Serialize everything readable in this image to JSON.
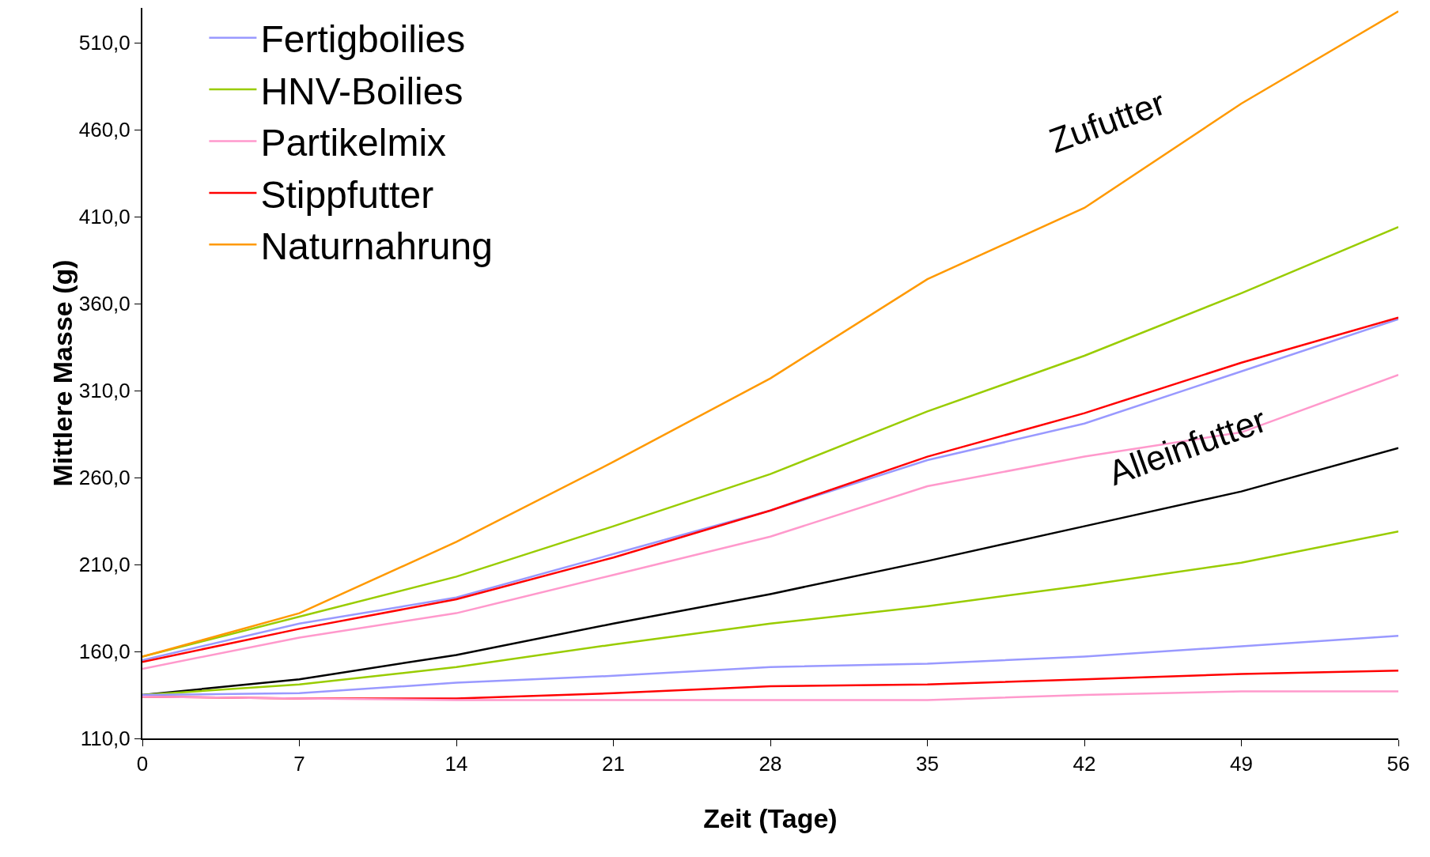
{
  "chart_data": {
    "type": "line",
    "xlabel": "Zeit (Tage)",
    "ylabel": "Mittlere Masse (g)",
    "x": [
      0,
      7,
      14,
      21,
      28,
      35,
      42,
      49,
      56
    ],
    "xlim": [
      0,
      56
    ],
    "xticks": [
      0,
      7,
      14,
      21,
      28,
      35,
      42,
      49,
      56
    ],
    "ylim": [
      110,
      530
    ],
    "yticks": [
      {
        "value": 110,
        "label": "110,0"
      },
      {
        "value": 160,
        "label": "160,0"
      },
      {
        "value": 210,
        "label": "210,0"
      },
      {
        "value": 260,
        "label": "260,0"
      },
      {
        "value": 310,
        "label": "310,0"
      },
      {
        "value": 360,
        "label": "360,0"
      },
      {
        "value": 410,
        "label": "410,0"
      },
      {
        "value": 460,
        "label": "460,0"
      },
      {
        "value": 510,
        "label": "510,0"
      }
    ],
    "grid": false,
    "legend": "top left",
    "marker": "none",
    "line_style": "solid",
    "series": [
      {
        "name": "Fertigboilies",
        "color": "#9999ff",
        "values": [
          155,
          176,
          191,
          216,
          241,
          270,
          291,
          321,
          351
        ]
      },
      {
        "name": "HNV-Boilies",
        "color": "#99cc00",
        "values": [
          157,
          180,
          203,
          232,
          262,
          298,
          330,
          366,
          404
        ]
      },
      {
        "name": "Partikelmix",
        "color": "#ff99cc",
        "values": [
          150,
          168,
          182,
          204,
          226,
          255,
          272,
          286,
          319
        ]
      },
      {
        "name": "Stippfutter",
        "color": "#ff0000",
        "values": [
          154,
          173,
          190,
          214,
          241,
          272,
          297,
          326,
          352
        ]
      },
      {
        "name": "Naturnahrung",
        "color": "#ff9900",
        "values": [
          157,
          182,
          223,
          269,
          317,
          374,
          415,
          475,
          528
        ]
      },
      {
        "color": "#000000",
        "values": [
          135,
          144,
          158,
          176,
          193,
          212,
          232,
          252,
          277
        ]
      },
      {
        "color": "#99cc00",
        "values": [
          135,
          141,
          151,
          164,
          176,
          186,
          198,
          211,
          229
        ]
      },
      {
        "color": "#9999ff",
        "values": [
          135,
          136,
          142,
          146,
          151,
          153,
          157,
          163,
          169
        ]
      },
      {
        "color": "#ff0000",
        "values": [
          134,
          133,
          133,
          136,
          140,
          141,
          144,
          147,
          149
        ]
      },
      {
        "color": "#ff99cc",
        "values": [
          134,
          133,
          132,
          132,
          132,
          132,
          135,
          137,
          137
        ]
      }
    ],
    "annotations": [
      "Zufutter",
      "Alleinfutter"
    ]
  }
}
